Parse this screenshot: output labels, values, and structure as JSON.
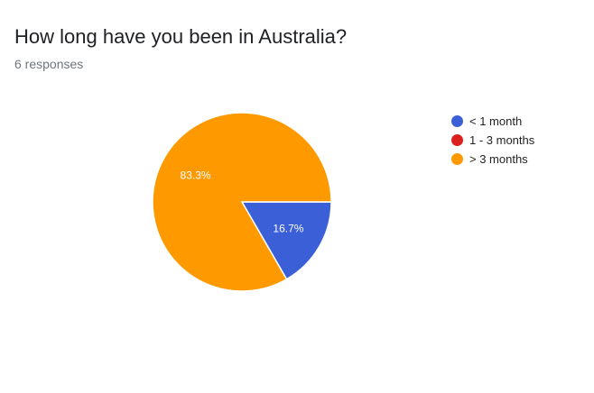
{
  "header": {
    "title": "How long have you been in Australia?",
    "subtitle": "6 responses"
  },
  "chart_data": {
    "type": "pie",
    "title": "How long have you been in Australia?",
    "total_responses": 6,
    "categories": [
      "< 1 month",
      "1 - 3 months",
      "> 3 months"
    ],
    "values": [
      1,
      0,
      5
    ],
    "labels": [
      "16.7%",
      "",
      "83.3%"
    ],
    "colors": [
      "#3b5fd6",
      "#dc1f1f",
      "#ff9900"
    ],
    "legend_position": "right"
  }
}
